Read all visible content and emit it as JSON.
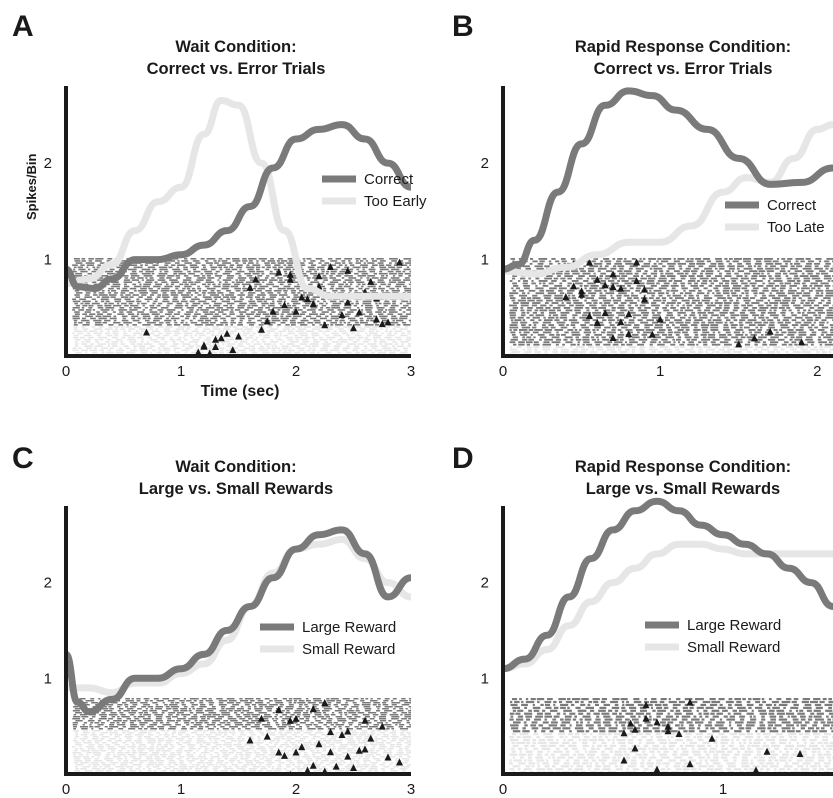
{
  "colors": {
    "dark_series": "#7a7a7a",
    "light_series": "#e6e6e6",
    "axis": "#1a1a1a",
    "marker": "#1a1a1a"
  },
  "chart_data": [
    {
      "panel": "A",
      "type": "line",
      "title": [
        "Wait Condition:",
        "Correct vs. Error Trials"
      ],
      "xlabel": "Time (sec)",
      "ylabel": "Spikes/Bin",
      "xlim": [
        0,
        3
      ],
      "ylim": [
        0,
        2.8
      ],
      "xticks": [
        "0",
        "1",
        "2",
        "3"
      ],
      "yticks": [
        "1",
        "2"
      ],
      "legend_position": "right",
      "series": [
        {
          "name": "Correct",
          "color": "#7a7a7a",
          "x": [
            0,
            0.1,
            0.25,
            0.4,
            0.6,
            0.8,
            1.0,
            1.2,
            1.4,
            1.6,
            1.8,
            2.0,
            2.2,
            2.4,
            2.6,
            2.8,
            3.0
          ],
          "y": [
            0.9,
            0.72,
            0.7,
            0.8,
            1.0,
            1.0,
            1.05,
            1.15,
            1.3,
            1.55,
            1.95,
            2.25,
            2.35,
            2.4,
            2.25,
            2.0,
            1.75
          ]
        },
        {
          "name": "Too Early",
          "color": "#e6e6e6",
          "x": [
            0,
            0.2,
            0.4,
            0.6,
            0.8,
            1.0,
            1.2,
            1.35,
            1.5,
            1.7,
            1.9,
            2.1,
            2.3,
            2.5,
            2.7,
            3.0
          ],
          "y": [
            0.75,
            0.8,
            0.95,
            1.3,
            1.6,
            1.75,
            2.3,
            2.65,
            2.6,
            2.0,
            1.3,
            0.7,
            0.62,
            0.62,
            0.62,
            0.62
          ]
        }
      ],
      "raster": {
        "dark_trials": 32,
        "light_trials": 14,
        "dark_marker_times": [
          1.6,
          1.7,
          1.8,
          1.9,
          2.0,
          2.1,
          2.2,
          2.3,
          2.4,
          2.5,
          2.6,
          2.7,
          2.8,
          1.65,
          1.85,
          2.05,
          2.25,
          2.45,
          2.65,
          1.75,
          1.95,
          2.15,
          2.35,
          2.55,
          2.75,
          1.95,
          2.2,
          2.45,
          2.7,
          2.9
        ],
        "light_marker_times": [
          0.7,
          1.15,
          1.2,
          1.25,
          1.3,
          1.35,
          1.4,
          1.45,
          1.3,
          1.2,
          1.5,
          1.25
        ]
      }
    },
    {
      "panel": "B",
      "type": "line",
      "title": [
        "Rapid Response Condition:",
        "Correct vs. Error Trials"
      ],
      "xlabel": "",
      "ylabel": "",
      "xlim": [
        0,
        2.1
      ],
      "ylim": [
        0,
        2.8
      ],
      "xticks": [
        "0",
        "1",
        "2"
      ],
      "yticks": [
        "1",
        "2"
      ],
      "legend_position": "right",
      "series": [
        {
          "name": "Correct",
          "color": "#7a7a7a",
          "x": [
            0,
            0.1,
            0.2,
            0.35,
            0.5,
            0.65,
            0.8,
            0.95,
            1.1,
            1.3,
            1.5,
            1.7,
            1.9,
            2.1
          ],
          "y": [
            0.9,
            0.95,
            1.2,
            1.7,
            2.2,
            2.6,
            2.75,
            2.7,
            2.55,
            2.35,
            2.05,
            1.78,
            1.8,
            1.95
          ]
        },
        {
          "name": "Too Late",
          "color": "#e6e6e6",
          "x": [
            0,
            0.2,
            0.4,
            0.6,
            0.8,
            1.0,
            1.2,
            1.4,
            1.55,
            1.7,
            1.85,
            2.0,
            2.1
          ],
          "y": [
            0.88,
            0.85,
            0.92,
            1.05,
            1.18,
            1.18,
            1.35,
            1.7,
            1.85,
            1.8,
            2.05,
            2.35,
            2.4
          ]
        }
      ],
      "raster": {
        "dark_trials": 36,
        "light_trials": 4,
        "dark_marker_times": [
          0.4,
          0.45,
          0.5,
          0.55,
          0.6,
          0.65,
          0.7,
          0.75,
          0.8,
          0.85,
          0.9,
          0.95,
          1.0,
          0.5,
          0.6,
          0.7,
          0.8,
          0.55,
          0.65,
          0.75,
          0.85,
          0.45,
          0.6,
          0.7,
          0.9,
          1.5,
          1.6,
          1.7,
          1.9
        ],
        "light_marker_times": []
      }
    },
    {
      "panel": "C",
      "type": "line",
      "title": [
        "Wait Condition:",
        "Large vs. Small Rewards"
      ],
      "xlabel": "",
      "ylabel": "",
      "xlim": [
        0,
        3
      ],
      "ylim": [
        0,
        2.8
      ],
      "xticks": [
        "0",
        "1",
        "2",
        "3"
      ],
      "yticks": [
        "1",
        "2"
      ],
      "legend_position": "right",
      "series": [
        {
          "name": "Large Reward",
          "color": "#7a7a7a",
          "x": [
            0,
            0.1,
            0.2,
            0.4,
            0.6,
            0.8,
            1.0,
            1.2,
            1.4,
            1.6,
            1.8,
            2.0,
            2.2,
            2.4,
            2.6,
            2.8,
            3.0
          ],
          "y": [
            1.25,
            0.75,
            0.65,
            0.78,
            1.0,
            1.0,
            1.1,
            1.25,
            1.5,
            1.75,
            2.05,
            2.35,
            2.5,
            2.55,
            2.3,
            1.85,
            2.05
          ]
        },
        {
          "name": "Small Reward",
          "color": "#e6e6e6",
          "x": [
            0,
            0.2,
            0.4,
            0.6,
            0.8,
            1.0,
            1.2,
            1.4,
            1.6,
            1.8,
            2.0,
            2.2,
            2.4,
            2.6,
            2.8,
            3.0
          ],
          "y": [
            0.9,
            0.9,
            0.85,
            0.95,
            0.95,
            1.05,
            1.15,
            1.4,
            1.75,
            2.1,
            2.35,
            2.4,
            2.45,
            2.25,
            2.0,
            1.85
          ]
        }
      ],
      "raster": {
        "dark_trials": 16,
        "light_trials": 22,
        "dark_marker_times": [
          1.7,
          1.85,
          2.0,
          2.15,
          2.3,
          2.45,
          2.6,
          2.75,
          1.95,
          2.25
        ],
        "light_marker_times": [
          1.6,
          1.7,
          1.8,
          1.9,
          2.0,
          2.1,
          2.2,
          2.3,
          2.4,
          2.5,
          2.6,
          2.7,
          2.8,
          2.9,
          1.75,
          1.95,
          2.15,
          2.35,
          2.55,
          2.75,
          1.85,
          2.05,
          2.25,
          2.45,
          2.65
        ]
      }
    },
    {
      "panel": "D",
      "type": "line",
      "title": [
        "Rapid Response Condition:",
        "Large vs. Small Rewards"
      ],
      "xlabel": "",
      "ylabel": "",
      "xlim": [
        0,
        1.5
      ],
      "ylim": [
        0,
        2.8
      ],
      "xticks": [
        "0",
        "1"
      ],
      "yticks": [
        "1",
        "2"
      ],
      "legend_position": "right",
      "series": [
        {
          "name": "Large Reward",
          "color": "#7a7a7a",
          "x": [
            0,
            0.1,
            0.2,
            0.3,
            0.4,
            0.5,
            0.6,
            0.7,
            0.8,
            0.9,
            1.0,
            1.1,
            1.2,
            1.3,
            1.4,
            1.5
          ],
          "y": [
            1.1,
            1.2,
            1.45,
            1.85,
            2.25,
            2.55,
            2.75,
            2.85,
            2.75,
            2.6,
            2.5,
            2.4,
            2.3,
            2.15,
            2.0,
            1.75
          ]
        },
        {
          "name": "Small Reward",
          "color": "#e6e6e6",
          "x": [
            0,
            0.1,
            0.2,
            0.3,
            0.4,
            0.5,
            0.6,
            0.7,
            0.8,
            0.9,
            1.0,
            1.1,
            1.2,
            1.3,
            1.4,
            1.5
          ],
          "y": [
            1.1,
            1.15,
            1.3,
            1.55,
            1.8,
            2.0,
            2.15,
            2.3,
            2.4,
            2.4,
            2.35,
            2.3,
            2.3,
            2.3,
            2.3,
            2.3
          ]
        }
      ],
      "raster": {
        "dark_trials": 12,
        "light_trials": 14,
        "dark_marker_times": [
          0.55,
          0.6,
          0.65,
          0.7,
          0.75,
          0.8,
          0.85,
          0.65,
          0.75,
          0.58
        ],
        "light_marker_times": [
          0.45,
          0.6,
          0.7,
          0.8,
          0.95,
          1.05,
          1.2,
          1.35,
          0.55,
          0.85,
          1.15
        ]
      }
    }
  ]
}
